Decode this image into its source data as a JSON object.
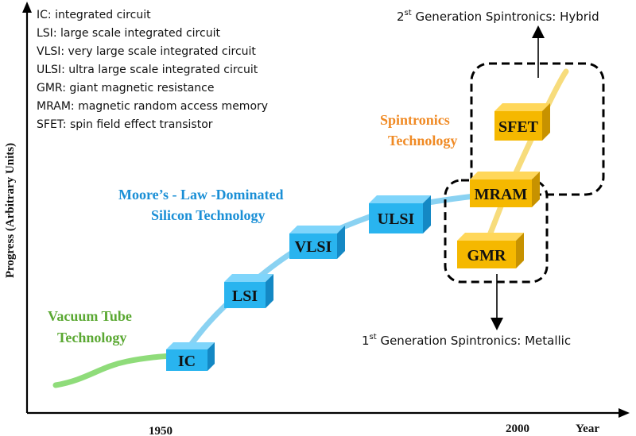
{
  "legend": [
    "IC: integrated circuit",
    "LSI: large scale integrated circuit",
    "VLSI: very large scale integrated circuit",
    "ULSI: ultra large scale integrated circuit",
    "GMR: giant magnetic resistance",
    "MRAM: magnetic random access memory",
    "SFET: spin field effect transistor"
  ],
  "axes": {
    "y_label": "Progress (Arbitrary Units)",
    "x_label": "Year",
    "x_ticks": [
      "1950",
      "2000"
    ]
  },
  "eras": {
    "vacuum_line1": "Vacuum Tube",
    "vacuum_line2": "Technology",
    "moore_line1": "Moore’s - Law -Dominated",
    "moore_line2": "Silicon Technology",
    "spin_line1": "Spintronics",
    "spin_line2": "Technology"
  },
  "boxes": {
    "ic": "IC",
    "lsi": "LSI",
    "vlsi": "VLSI",
    "ulsi": "ULSI",
    "mram": "MRAM",
    "gmr": "GMR",
    "sfet": "SFET"
  },
  "generations": {
    "second_prefix": "2",
    "second_sup": "st",
    "second_text": " Generation Spintronics: Hybrid",
    "first_prefix": "1",
    "first_sup": "st",
    "first_text": " Generation Spintronics: Metallic"
  },
  "colors": {
    "vacuum": "#5aa832",
    "moore": "#1a8fd6",
    "spin": "#f08a24",
    "blue_box": "#29b4ef",
    "gold_box": "#f5b800"
  }
}
